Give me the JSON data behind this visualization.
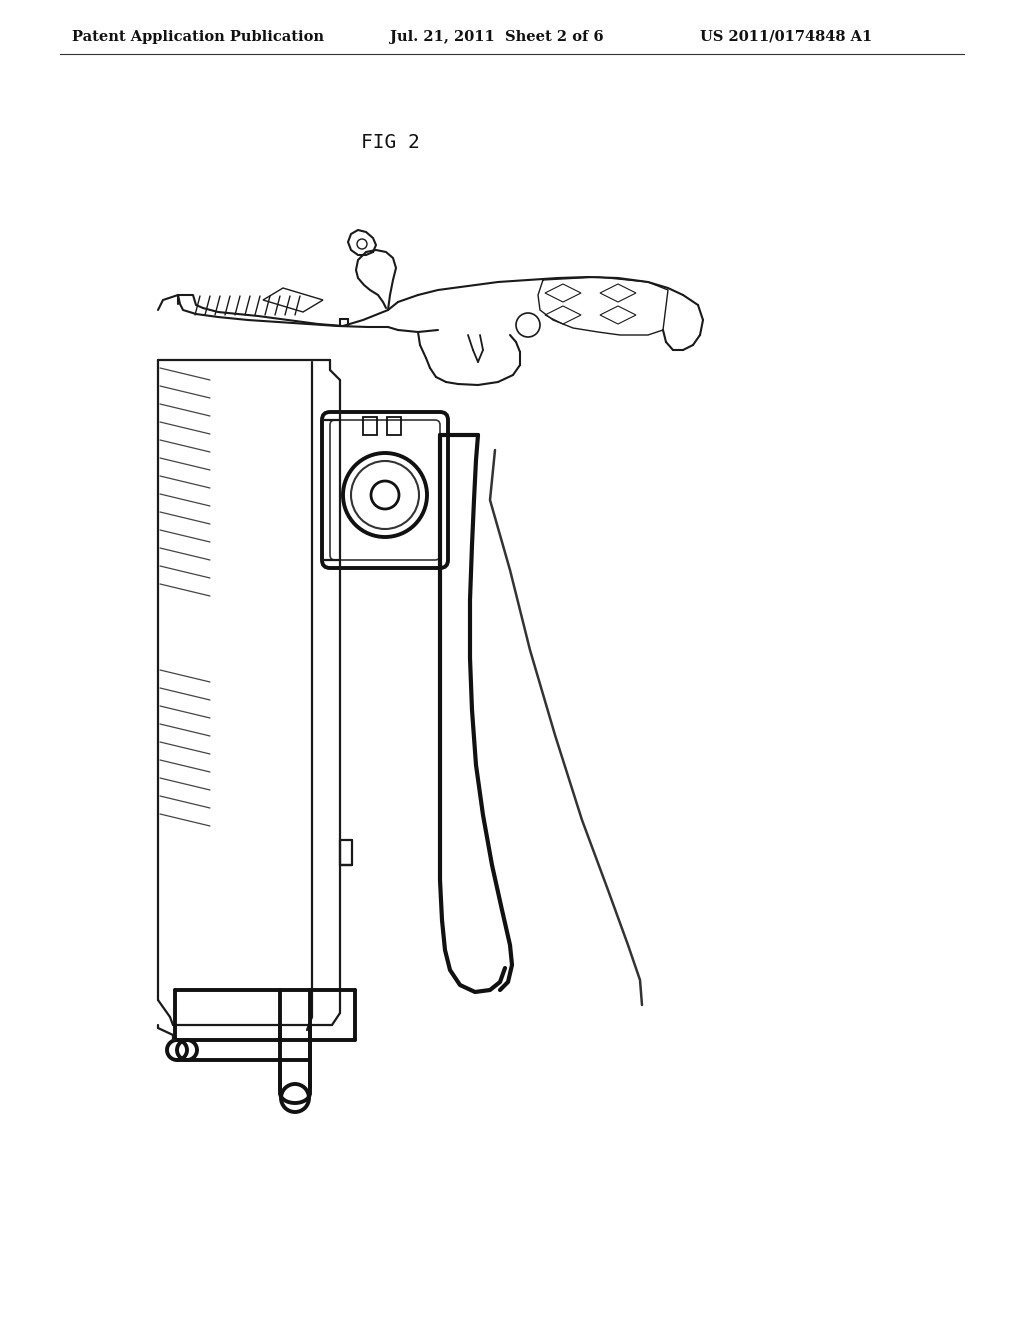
{
  "title": "FIG 2",
  "header_left": "Patent Application Publication",
  "header_center": "Jul. 21, 2011  Sheet 2 of 6",
  "header_right": "US 2011/0174848 A1",
  "bg_color": "#ffffff",
  "line_color": "#1a1a1a",
  "thick_line_color": "#111111"
}
